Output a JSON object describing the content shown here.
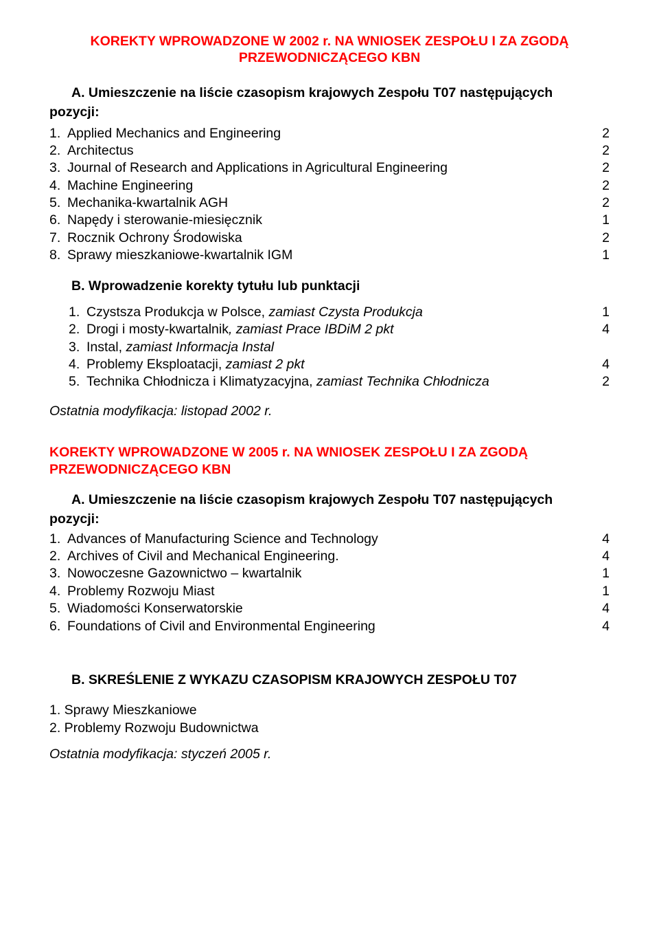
{
  "doc2002": {
    "title_l1": "KOREKTY WPROWADZONE W 2002 r. NA WNIOSEK ZESPOŁU I ZA ZGODĄ",
    "title_l2": "PRZEWODNICZĄCEGO KBN",
    "sectionA_l1": "A. Umieszczenie na liście czasopism krajowych Zespołu T07 następujących",
    "sectionA_l2": "pozycji:",
    "listA": [
      {
        "n": "1.",
        "name": "Applied Mechanics and Engineering",
        "pts": "2"
      },
      {
        "n": "2.",
        "name": "Architectus",
        "pts": "2"
      },
      {
        "n": "3.",
        "name": "Journal of Research and Applications in Agricultural Engineering",
        "pts": "2"
      },
      {
        "n": "4.",
        "name": "Machine Engineering",
        "pts": "2"
      },
      {
        "n": "5.",
        "name": "Mechanika-kwartalnik AGH",
        "pts": "2"
      },
      {
        "n": "6.",
        "name": "Napędy i sterowanie-miesięcznik",
        "pts": "1"
      },
      {
        "n": "7.",
        "name": "Rocznik Ochrony Środowiska",
        "pts": "2"
      },
      {
        "n": "8.",
        "name": "Sprawy mieszkaniowe-kwartalnik IGM",
        "pts": "1"
      }
    ],
    "sectionB": "B. Wprowadzenie korekty tytułu lub punktacji",
    "listB": [
      {
        "n": "1.",
        "pre": "Czystsza Produkcja w Polsce, ",
        "ital": "zamiast Czysta Produkcja",
        "post": "",
        "pts": "1"
      },
      {
        "n": "2.",
        "pre": "Drogi i mosty-kwartalnik",
        "ital": ", zamiast Prace IBDiM 2 pkt",
        "post": "",
        "pts": "4"
      },
      {
        "n": "3.",
        "pre": "Instal, ",
        "ital": "zamiast Informacja Instal",
        "post": "",
        "pts": ""
      },
      {
        "n": "4.",
        "pre": "Problemy Eksploatacji, ",
        "ital": "zamiast 2 pkt",
        "post": "",
        "pts": "4"
      },
      {
        "n": "5.",
        "pre": "Technika Chłodnicza i Klimatyzacyjna, ",
        "ital": "zamiast Technika Chłodnicza",
        "post": "",
        "pts": "2"
      }
    ],
    "footer": "Ostatnia modyfikacja: listopad 2002 r."
  },
  "doc2005": {
    "title_part1": "KOREKTY WPROWADZONE W 2005 r.",
    "title_part2": "  NA WNIOSEK ZESPOŁU I ZA ZGODĄ",
    "title_l2": "PRZEWODNICZĄCEGO KBN",
    "sectionA_l1": "A. Umieszczenie na liście czasopism krajowych Zespołu T07 następujących",
    "sectionA_l2": "pozycji:",
    "listA": [
      {
        "n": "1.",
        "name": "Advances of Manufacturing Science and Technology",
        "pts": "4"
      },
      {
        "n": "2.",
        "name": "Archives of Civil and Mechanical Engineering.",
        "pts": "4"
      },
      {
        "n": "3.",
        "name": "Nowoczesne Gazownictwo – kwartalnik",
        "pts": "1"
      },
      {
        "n": "4.",
        "name": "Problemy Rozwoju Miast",
        "pts": "1"
      },
      {
        "n": "5.",
        "name": "Wiadomości Konserwatorskie",
        "pts": "4"
      },
      {
        "n": "6.",
        "name": "Foundations of Civil and Environmental Engineering",
        "pts": "4"
      }
    ],
    "sectionB": "B. SKREŚLENIE Z WYKAZU CZASOPISM KRAJOWYCH ZESPOŁU T07",
    "listB": [
      "1. Sprawy Mieszkaniowe",
      "2. Problemy Rozwoju Budownictwa"
    ],
    "footer": "Ostatnia modyfikacja: styczeń 2005 r."
  }
}
